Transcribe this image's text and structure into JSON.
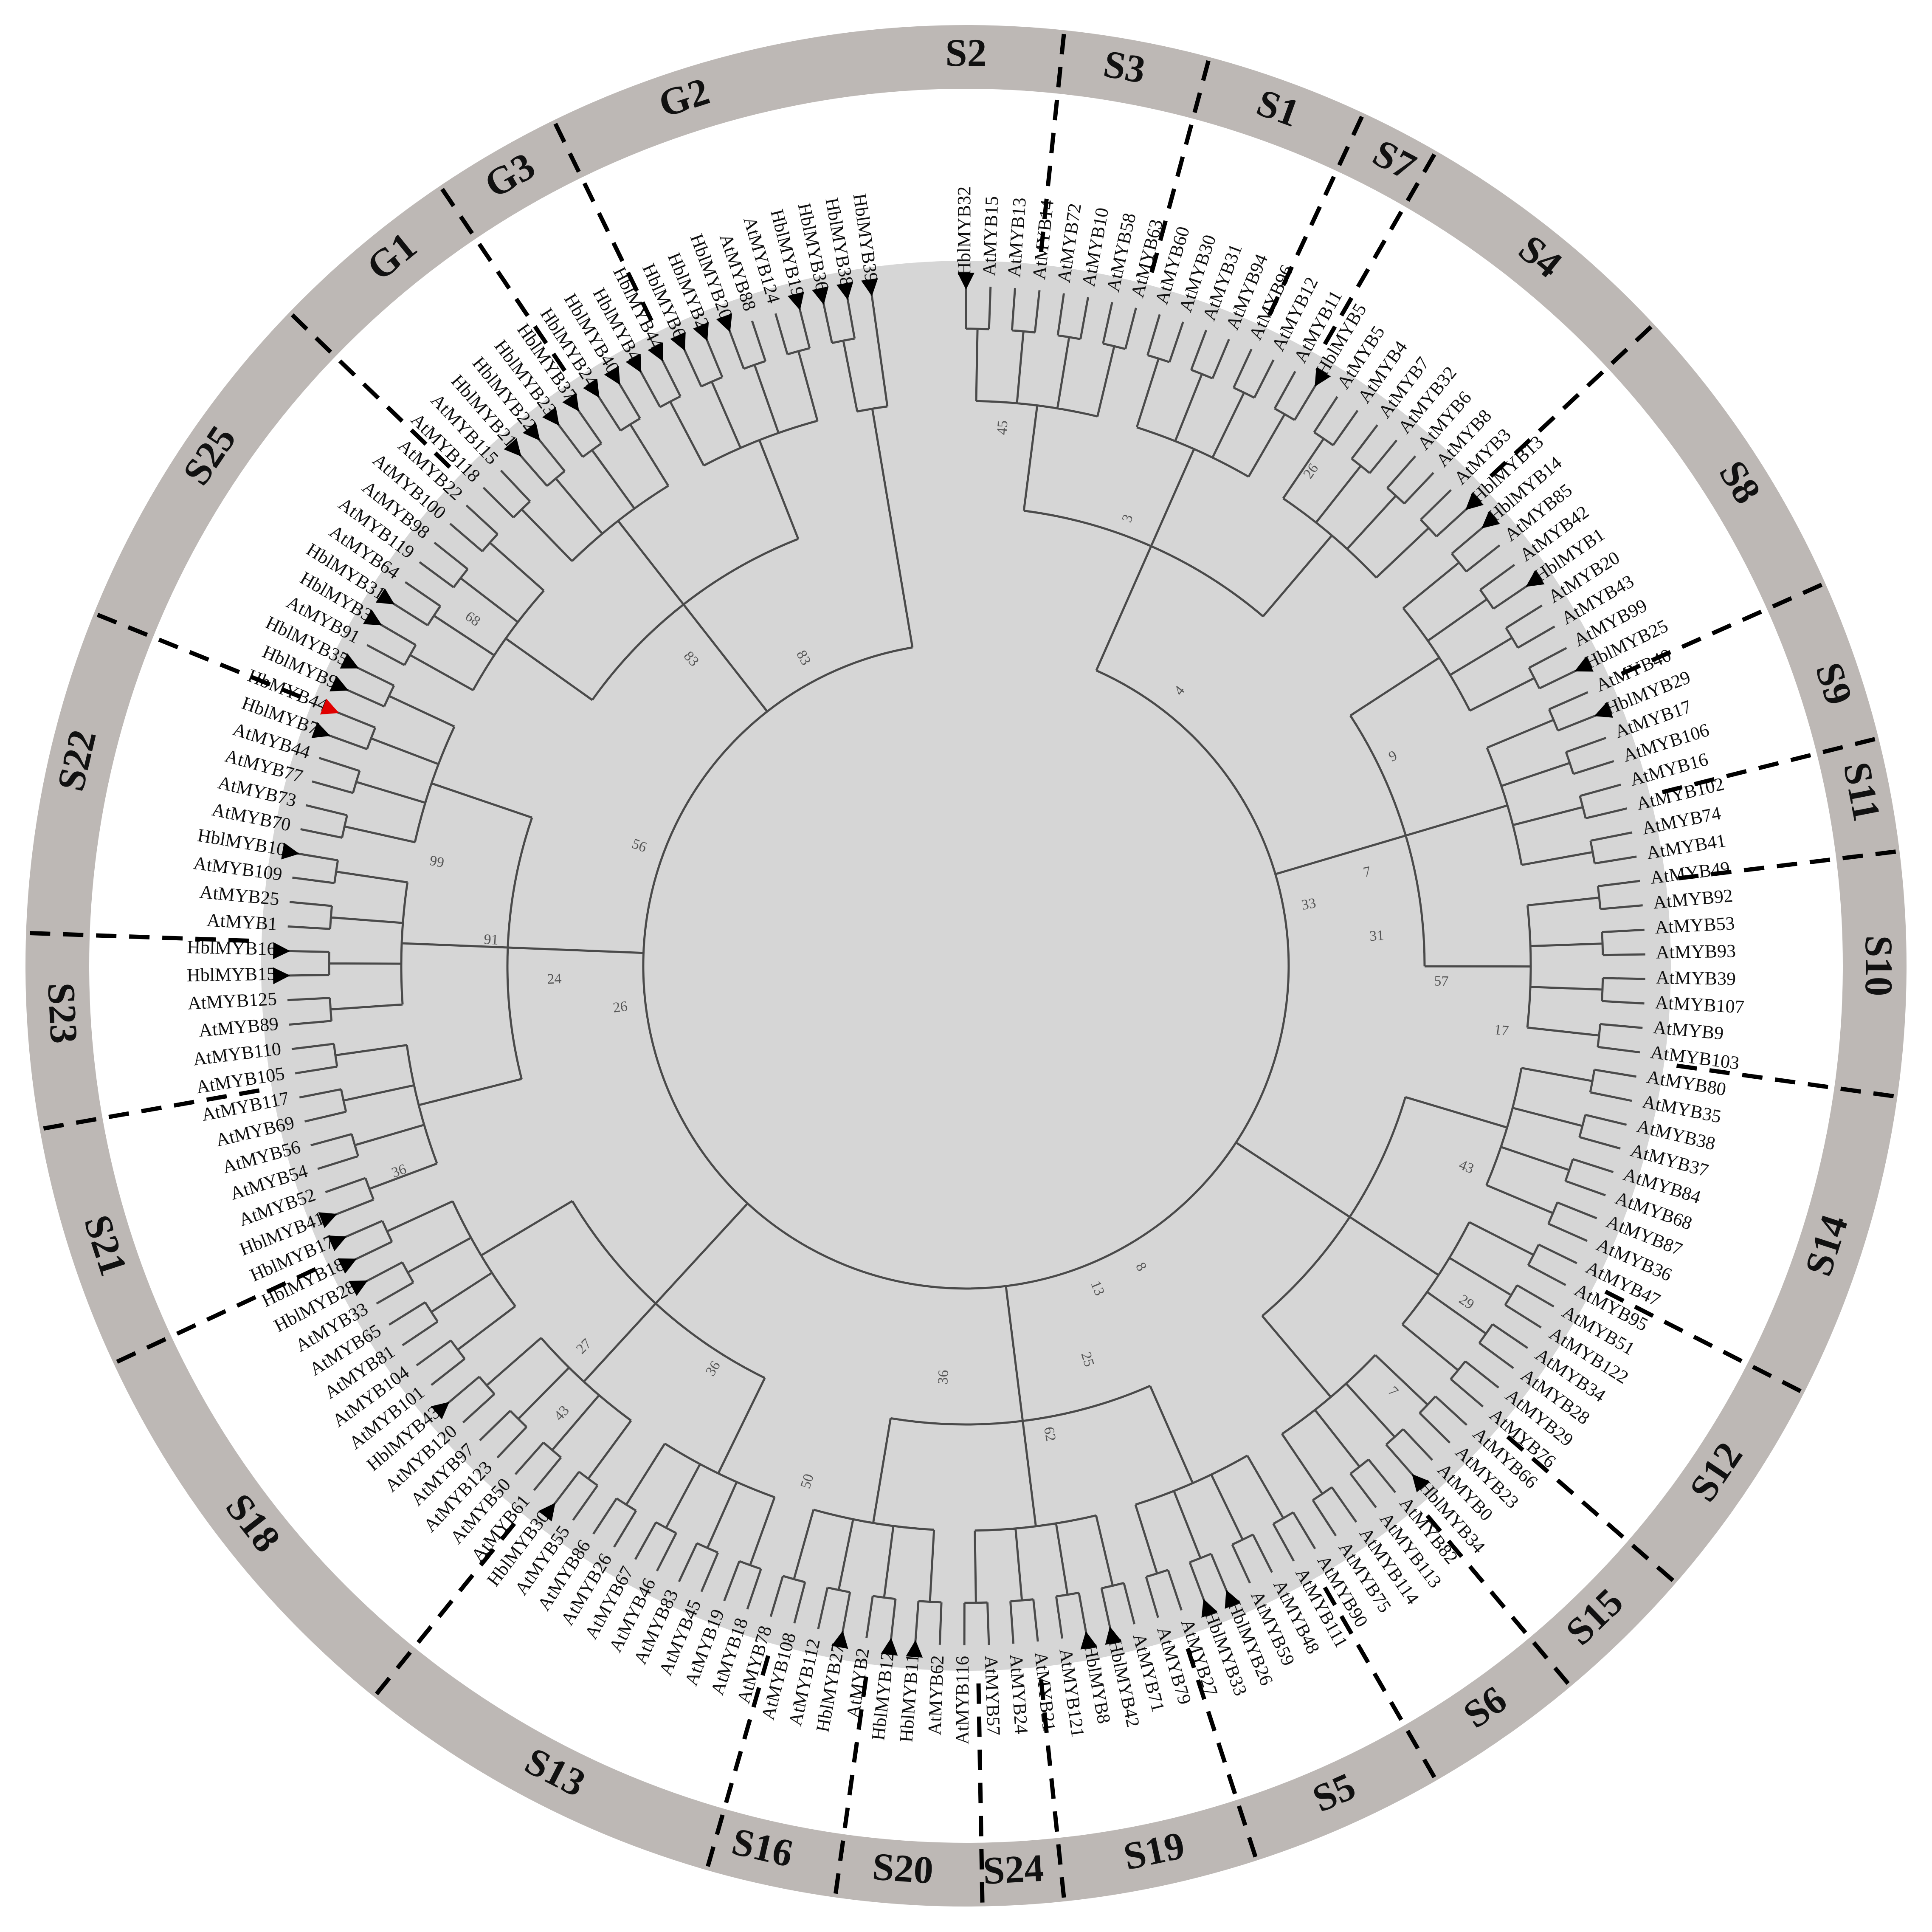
{
  "figure": {
    "groups": [
      {
        "label": "S2",
        "angle": 0
      },
      {
        "label": "S3",
        "angle": 10
      },
      {
        "label": "S1",
        "angle": 20
      },
      {
        "label": "S7",
        "angle": 28
      },
      {
        "label": "S4",
        "angle": 39
      },
      {
        "label": "S8",
        "angle": 58
      },
      {
        "label": "S9",
        "angle": 72
      },
      {
        "label": "S11",
        "angle": 79
      },
      {
        "label": "S10",
        "angle": 90
      },
      {
        "label": "S14",
        "angle": 108
      },
      {
        "label": "S12",
        "angle": 124
      },
      {
        "label": "S15",
        "angle": 136
      },
      {
        "label": "S6",
        "angle": 145
      },
      {
        "label": "S5",
        "angle": 156
      },
      {
        "label": "S19",
        "angle": 168
      },
      {
        "label": "S24",
        "angle": 177
      },
      {
        "label": "S20",
        "angle": 184
      },
      {
        "label": "S16",
        "angle": 193
      },
      {
        "label": "S13",
        "angle": 207
      },
      {
        "label": "S18",
        "angle": 232
      },
      {
        "label": "S21",
        "angle": 252
      },
      {
        "label": "S23",
        "angle": 267
      },
      {
        "label": "S22",
        "angle": 283
      },
      {
        "label": "S25",
        "angle": 304
      },
      {
        "label": "G1",
        "angle": 321
      },
      {
        "label": "G3",
        "angle": 330
      },
      {
        "label": "G2",
        "angle": 342
      }
    ],
    "dividers": [
      6,
      15,
      25,
      30,
      47,
      66,
      76,
      83,
      98,
      117,
      131,
      140,
      150,
      162,
      174,
      179,
      188,
      196,
      219,
      245,
      260,
      272,
      292,
      314,
      326,
      334
    ],
    "leaves": [
      {
        "label": "HblMYB32",
        "marker": "black"
      },
      {
        "label": "AtMYB15"
      },
      {
        "label": "AtMYB13"
      },
      {
        "label": "AtMYB14"
      },
      {
        "label": "AtMYB72"
      },
      {
        "label": "AtMYB10"
      },
      {
        "label": "AtMYB58"
      },
      {
        "label": "AtMYB63"
      },
      {
        "label": "AtMYB60"
      },
      {
        "label": "AtMYB30"
      },
      {
        "label": "AtMYB31"
      },
      {
        "label": "AtMYB94"
      },
      {
        "label": "AtMYB96"
      },
      {
        "label": "AtMYB12"
      },
      {
        "label": "AtMYB11"
      },
      {
        "label": "HblMYB5",
        "marker": "black"
      },
      {
        "label": "AtMYB5"
      },
      {
        "label": "AtMYB4"
      },
      {
        "label": "AtMYB7"
      },
      {
        "label": "AtMYB32"
      },
      {
        "label": "AtMYB6"
      },
      {
        "label": "AtMYB8"
      },
      {
        "label": "AtMYB3"
      },
      {
        "label": "HblMYB13",
        "marker": "black"
      },
      {
        "label": "HblMYB14",
        "marker": "black"
      },
      {
        "label": "AtMYB85"
      },
      {
        "label": "AtMYB42"
      },
      {
        "label": "HblMYB1",
        "marker": "black"
      },
      {
        "label": "AtMYB20"
      },
      {
        "label": "AtMYB43"
      },
      {
        "label": "AtMYB99"
      },
      {
        "label": "HblMYB25",
        "marker": "black"
      },
      {
        "label": "AtMYB40"
      },
      {
        "label": "HblMYB29",
        "marker": "black"
      },
      {
        "label": "AtMYB17"
      },
      {
        "label": "AtMYB106"
      },
      {
        "label": "AtMYB16"
      },
      {
        "label": "AtMYB102"
      },
      {
        "label": "AtMYB74"
      },
      {
        "label": "AtMYB41"
      },
      {
        "label": "AtMYB49"
      },
      {
        "label": "AtMYB92"
      },
      {
        "label": "AtMYB53"
      },
      {
        "label": "AtMYB93"
      },
      {
        "label": "AtMYB39"
      },
      {
        "label": "AtMYB107"
      },
      {
        "label": "AtMYB9"
      },
      {
        "label": "AtMYB103"
      },
      {
        "label": "AtMYB80"
      },
      {
        "label": "AtMYB35"
      },
      {
        "label": "AtMYB38"
      },
      {
        "label": "AtMYB37"
      },
      {
        "label": "AtMYB84"
      },
      {
        "label": "AtMYB68"
      },
      {
        "label": "AtMYB87"
      },
      {
        "label": "AtMYB36"
      },
      {
        "label": "AtMYB47"
      },
      {
        "label": "AtMYB95"
      },
      {
        "label": "AtMYB51"
      },
      {
        "label": "AtMYB122"
      },
      {
        "label": "AtMYB34"
      },
      {
        "label": "AtMYB28"
      },
      {
        "label": "AtMYB29"
      },
      {
        "label": "AtMYB76"
      },
      {
        "label": "AtMYB66"
      },
      {
        "label": "AtMYB23"
      },
      {
        "label": "AtMYB0"
      },
      {
        "label": "HblMYB34",
        "marker": "black"
      },
      {
        "label": "AtMYB82"
      },
      {
        "label": "AtMYB113"
      },
      {
        "label": "AtMYB114"
      },
      {
        "label": "AtMYB75"
      },
      {
        "label": "AtMYB90"
      },
      {
        "label": "AtMYB111"
      },
      {
        "label": "AtMYB48"
      },
      {
        "label": "AtMYB59"
      },
      {
        "label": "HblMYB26",
        "marker": "black"
      },
      {
        "label": "HblMYB33",
        "marker": "black"
      },
      {
        "label": "AtMYB27"
      },
      {
        "label": "AtMYB79"
      },
      {
        "label": "AtMYB71"
      },
      {
        "label": "HblMYB42",
        "marker": "black"
      },
      {
        "label": "HblMYB8",
        "marker": "black"
      },
      {
        "label": "AtMYB121"
      },
      {
        "label": "AtMYB21"
      },
      {
        "label": "AtMYB24"
      },
      {
        "label": "AtMYB57"
      },
      {
        "label": "AtMYB116"
      },
      {
        "label": "AtMYB62"
      },
      {
        "label": "HblMYB11",
        "marker": "black"
      },
      {
        "label": "HblMYB12",
        "marker": "black"
      },
      {
        "label": "AtMYB2"
      },
      {
        "label": "HblMYB27",
        "marker": "black"
      },
      {
        "label": "AtMYB112"
      },
      {
        "label": "AtMYB108"
      },
      {
        "label": "AtMYB78"
      },
      {
        "label": "AtMYB18"
      },
      {
        "label": "AtMYB19"
      },
      {
        "label": "AtMYB45"
      },
      {
        "label": "AtMYB83"
      },
      {
        "label": "AtMYB46"
      },
      {
        "label": "AtMYB67"
      },
      {
        "label": "AtMYB26"
      },
      {
        "label": "AtMYB86"
      },
      {
        "label": "AtMYB55"
      },
      {
        "label": "HblMYB30",
        "marker": "black"
      },
      {
        "label": "AtMYB61"
      },
      {
        "label": "AtMYB50"
      },
      {
        "label": "AtMYB123"
      },
      {
        "label": "AtMYB97"
      },
      {
        "label": "AtMYB120"
      },
      {
        "label": "HblMYB43",
        "marker": "black"
      },
      {
        "label": "AtMYB101"
      },
      {
        "label": "AtMYB104"
      },
      {
        "label": "AtMYB81"
      },
      {
        "label": "AtMYB65"
      },
      {
        "label": "AtMYB33"
      },
      {
        "label": "HblMYB28",
        "marker": "black"
      },
      {
        "label": "HblMYB18",
        "marker": "black"
      },
      {
        "label": "HblMYB17",
        "marker": "black"
      },
      {
        "label": "HblMYB41",
        "marker": "black"
      },
      {
        "label": "AtMYB52"
      },
      {
        "label": "AtMYB54"
      },
      {
        "label": "AtMYB56"
      },
      {
        "label": "AtMYB69"
      },
      {
        "label": "AtMYB117"
      },
      {
        "label": "AtMYB105"
      },
      {
        "label": "AtMYB110"
      },
      {
        "label": "AtMYB89"
      },
      {
        "label": "AtMYB125"
      },
      {
        "label": "HblMYB15",
        "marker": "black"
      },
      {
        "label": "HblMYB16",
        "marker": "black"
      },
      {
        "label": "AtMYB1"
      },
      {
        "label": "AtMYB25"
      },
      {
        "label": "AtMYB109"
      },
      {
        "label": "HblMYB10",
        "marker": "black"
      },
      {
        "label": "AtMYB70"
      },
      {
        "label": "AtMYB73"
      },
      {
        "label": "AtMYB77"
      },
      {
        "label": "AtMYB44"
      },
      {
        "label": "HblMYB7",
        "marker": "black"
      },
      {
        "label": "HbMYB44",
        "marker": "red"
      },
      {
        "label": "HblMYB9",
        "marker": "black"
      },
      {
        "label": "HblMYB35",
        "marker": "black"
      },
      {
        "label": "AtMYB91"
      },
      {
        "label": "HblMYB3",
        "marker": "black"
      },
      {
        "label": "HblMYB31",
        "marker": "black"
      },
      {
        "label": "AtMYB64"
      },
      {
        "label": "AtMYB119"
      },
      {
        "label": "AtMYB98"
      },
      {
        "label": "AtMYB100"
      },
      {
        "label": "AtMYB22"
      },
      {
        "label": "AtMYB118"
      },
      {
        "label": "AtMYB115"
      },
      {
        "label": "HblMYB21",
        "marker": "black"
      },
      {
        "label": "HblMYB22",
        "marker": "black"
      },
      {
        "label": "HblMYB23",
        "marker": "black"
      },
      {
        "label": "HblMYB37",
        "marker": "black"
      },
      {
        "label": "HblMYB24",
        "marker": "black"
      },
      {
        "label": "HblMYB40",
        "marker": "black"
      },
      {
        "label": "HblMYB4",
        "marker": "black"
      },
      {
        "label": "HblMYB44",
        "marker": "black"
      },
      {
        "label": "HblMYB6",
        "marker": "black"
      },
      {
        "label": "HblMYB2",
        "marker": "black"
      },
      {
        "label": "HblMYB20",
        "marker": "black"
      },
      {
        "label": "AtMYB88"
      },
      {
        "label": "AtMYB124"
      },
      {
        "label": "HblMYB19",
        "marker": "black"
      },
      {
        "label": "HblMYB36",
        "marker": "black"
      },
      {
        "label": "HblMYB38",
        "marker": "black"
      },
      {
        "label": "HblMYB39",
        "marker": "black"
      }
    ],
    "inner_bootstrap": [
      {
        "label": "4",
        "angle": 38
      },
      {
        "label": "7",
        "angle": 77
      },
      {
        "label": "9",
        "angle": 64
      },
      {
        "label": "17",
        "angle": 97
      },
      {
        "label": "7",
        "angle": 135
      },
      {
        "label": "13",
        "angle": 158
      },
      {
        "label": "36",
        "angle": 183
      },
      {
        "label": "36",
        "angle": 212
      },
      {
        "label": "27",
        "angle": 225
      },
      {
        "label": "36",
        "angle": 250
      },
      {
        "label": "56",
        "angle": 290
      },
      {
        "label": "83",
        "angle": 318
      },
      {
        "label": "3",
        "angle": 20
      },
      {
        "label": "45",
        "angle": 4
      },
      {
        "label": "26",
        "angle": 35
      },
      {
        "label": "33",
        "angle": 80
      },
      {
        "label": "31",
        "angle": 86
      },
      {
        "label": "57",
        "angle": 92
      },
      {
        "label": "43",
        "angle": 112
      },
      {
        "label": "29",
        "angle": 124
      },
      {
        "label": "8",
        "angle": 150
      },
      {
        "label": "25",
        "angle": 163
      },
      {
        "label": "62",
        "angle": 170
      },
      {
        "label": "50",
        "angle": 197
      },
      {
        "label": "43",
        "angle": 222
      },
      {
        "label": "26",
        "angle": 263
      },
      {
        "label": "24",
        "angle": 268
      },
      {
        "label": "91",
        "angle": 273
      },
      {
        "label": "99",
        "angle": 281
      },
      {
        "label": "68",
        "angle": 305
      },
      {
        "label": "83",
        "angle": 332
      }
    ]
  }
}
